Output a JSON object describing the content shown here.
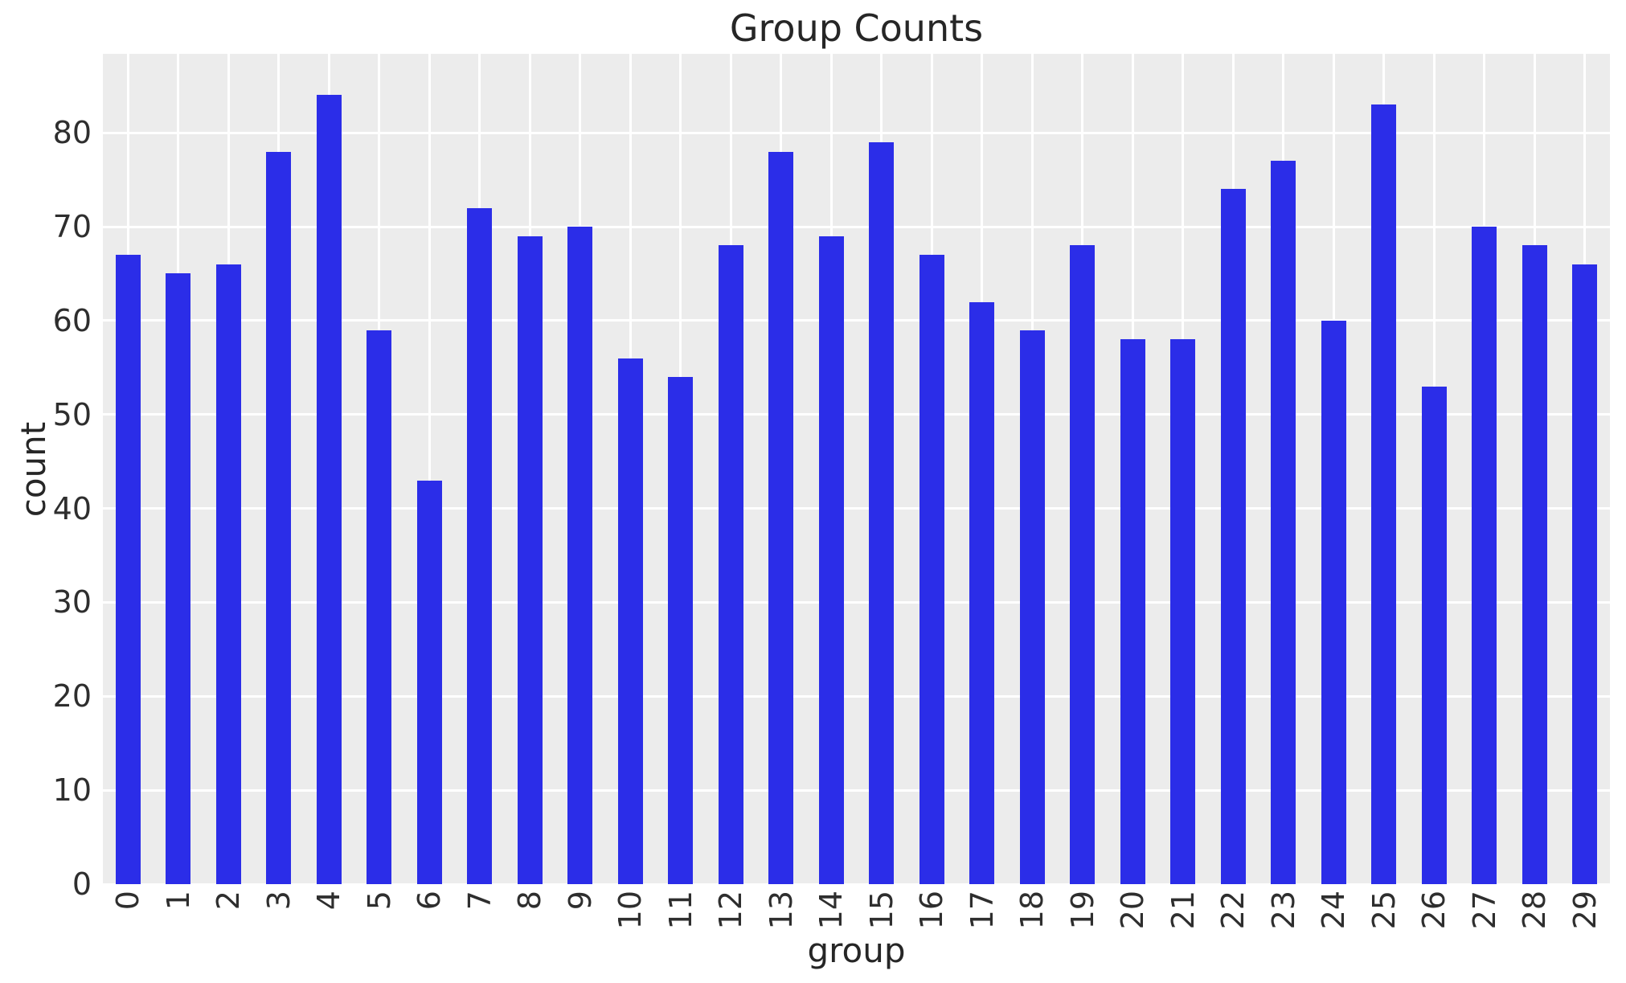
{
  "chart_data": {
    "type": "bar",
    "title": "Group Counts",
    "xlabel": "group",
    "ylabel": "count",
    "categories": [
      "0",
      "1",
      "2",
      "3",
      "4",
      "5",
      "6",
      "7",
      "8",
      "9",
      "10",
      "11",
      "12",
      "13",
      "14",
      "15",
      "16",
      "17",
      "18",
      "19",
      "20",
      "21",
      "22",
      "23",
      "24",
      "25",
      "26",
      "27",
      "28",
      "29"
    ],
    "values": [
      67,
      65,
      66,
      78,
      84,
      59,
      43,
      72,
      69,
      70,
      56,
      54,
      68,
      78,
      69,
      79,
      67,
      62,
      59,
      68,
      58,
      58,
      74,
      77,
      60,
      83,
      53,
      70,
      68,
      66
    ],
    "yticks": [
      0,
      10,
      20,
      30,
      40,
      50,
      60,
      70,
      80
    ],
    "ylim": [
      0,
      88.4
    ],
    "xtick_rotation_degrees": 90,
    "grid": true,
    "legend": null,
    "bar_color": "#2b2de8",
    "plot_background_color": "#ececec",
    "grid_color": "#ffffff",
    "text_color": "#262626",
    "figure_background_color": "#ffffff",
    "bar_relative_width": 0.5
  }
}
